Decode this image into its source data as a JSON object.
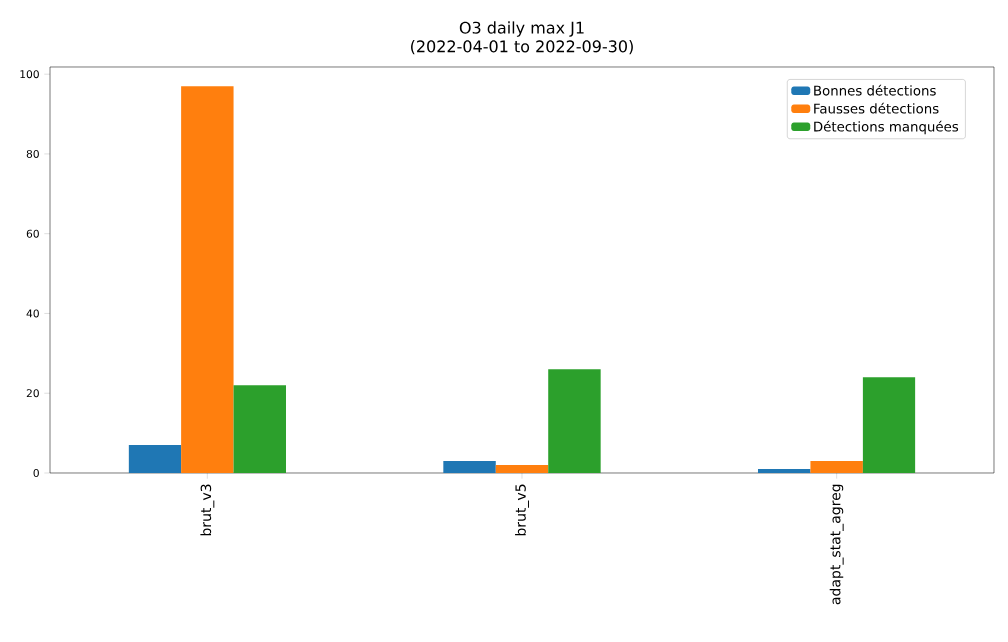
{
  "chart_data": {
    "type": "bar",
    "title": "O3 daily max J1",
    "subtitle": "(2022-04-01 to 2022-09-30)",
    "categories": [
      "brut_v3",
      "brut_v5",
      "adapt_stat_agreg"
    ],
    "series": [
      {
        "name": "Bonnes détections",
        "color": "#1f77b4",
        "values": [
          7,
          3,
          1
        ]
      },
      {
        "name": "Fausses détections",
        "color": "#ff7f0e",
        "values": [
          97,
          2,
          3
        ]
      },
      {
        "name": "Détections manquées",
        "color": "#2ca02c",
        "values": [
          22,
          26,
          24
        ]
      }
    ],
    "ylim": [
      0,
      101.8
    ],
    "yticks": [
      0,
      20,
      40,
      60,
      80,
      100
    ],
    "legend": "top right"
  }
}
